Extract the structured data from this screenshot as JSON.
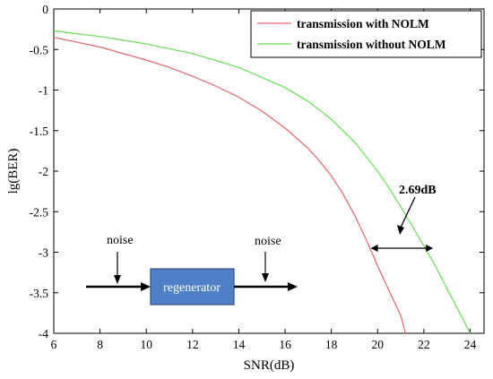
{
  "chart_data": {
    "type": "line",
    "xlabel": "SNR(dB)",
    "ylabel": "lg(BER)",
    "xlim": [
      6,
      24.6
    ],
    "ylim": [
      -4,
      0
    ],
    "xticks": [
      "6",
      "8",
      "10",
      "12",
      "14",
      "16",
      "18",
      "20",
      "22",
      "24"
    ],
    "yticks": [
      "0",
      "-0.5",
      "-1",
      "-1.5",
      "-2",
      "-2.5",
      "-3",
      "-3.5",
      "-4"
    ],
    "grid": false,
    "legend_position": "top-right",
    "series": [
      {
        "name": "transmission with NOLM",
        "color": "#e06666",
        "x": [
          6,
          7,
          8,
          9,
          10,
          11,
          12,
          13,
          14,
          15,
          16,
          17,
          17.5,
          18,
          18.5,
          19,
          19.5,
          20,
          20.5,
          21,
          21.2
        ],
        "y": [
          -0.35,
          -0.41,
          -0.47,
          -0.55,
          -0.63,
          -0.72,
          -0.83,
          -0.95,
          -1.09,
          -1.26,
          -1.47,
          -1.72,
          -1.88,
          -2.06,
          -2.28,
          -2.54,
          -2.84,
          -3.17,
          -3.48,
          -3.78,
          -4.0
        ]
      },
      {
        "name": "transmission without NOLM",
        "color": "#66dd55",
        "x": [
          6,
          8,
          10,
          12,
          14,
          16,
          17,
          18,
          19,
          20,
          20.5,
          21,
          21.5,
          22,
          22.5,
          23,
          23.5,
          24
        ],
        "y": [
          -0.27,
          -0.34,
          -0.43,
          -0.55,
          -0.72,
          -0.97,
          -1.14,
          -1.36,
          -1.64,
          -2.0,
          -2.21,
          -2.44,
          -2.68,
          -2.92,
          -3.17,
          -3.45,
          -3.72,
          -4.0
        ]
      }
    ],
    "annotations": {
      "gap_label": "2.69dB",
      "noise_left": "noise",
      "noise_right": "noise",
      "regenerator": "regenerator",
      "gap_x_start": 19.7,
      "gap_x_end": 22.4,
      "gap_y": -2.95
    },
    "colors": {
      "regenerator_box": "#4f7fc6",
      "regenerator_border": "#2f4f80"
    }
  }
}
